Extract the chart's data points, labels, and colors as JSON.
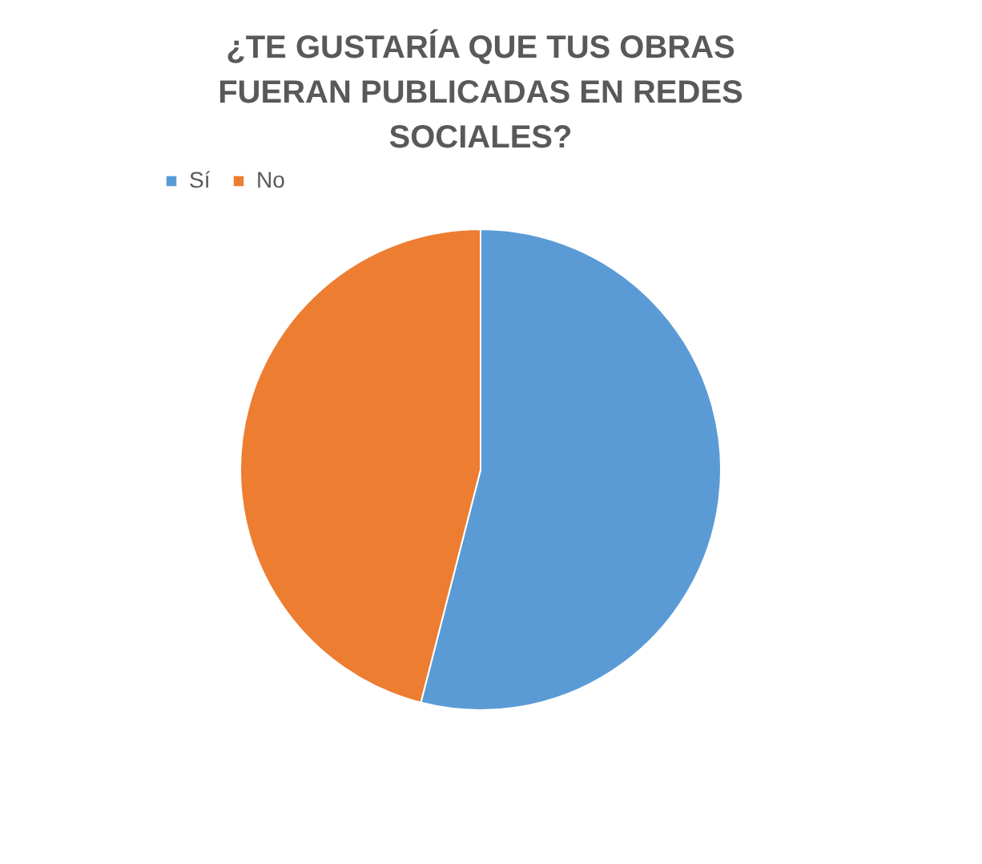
{
  "chart_data": {
    "type": "pie",
    "title": "¿TE GUSTARÍA QUE TUS OBRAS FUERAN PUBLICADAS EN REDES SOCIALES?",
    "categories": [
      "Sí",
      "No"
    ],
    "values": [
      54,
      46
    ],
    "colors": [
      "#5b9bd5",
      "#ed7d31"
    ],
    "legend": "top"
  }
}
